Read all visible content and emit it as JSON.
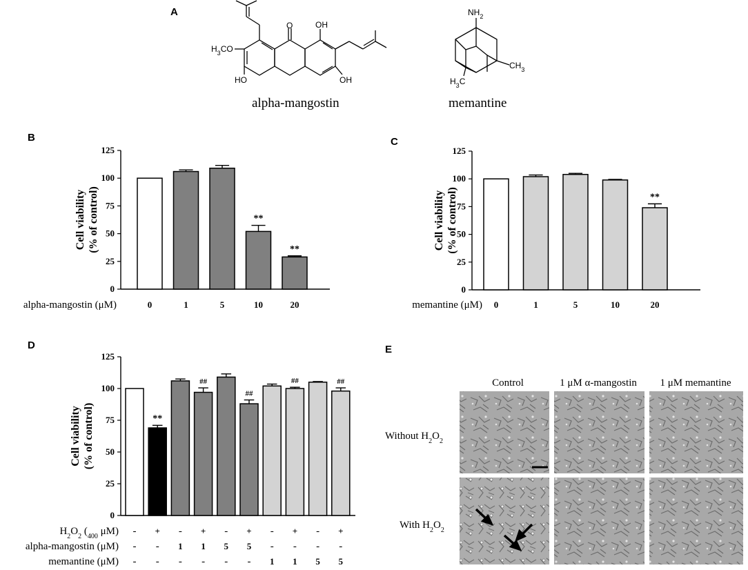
{
  "panel_letters": {
    "a": "A",
    "b": "B",
    "c": "C",
    "d": "D",
    "e": "E"
  },
  "panel_a": {
    "compound1_name": "alpha-mangostin",
    "compound2_name": "memantine",
    "atoms1": {
      "h3co": "H3CO",
      "o": "O",
      "oh_top": "OH",
      "ho": "HO",
      "oh_bottom": "OH"
    },
    "atoms2": {
      "nh2": "NH2",
      "ch3": "CH3",
      "h3c": "H3C"
    }
  },
  "panel_e": {
    "columns": [
      "Control",
      "1 μM α-mangostin",
      "1 μM memantine"
    ],
    "rows": [
      "Without H2O2",
      "With H2O2"
    ]
  },
  "chart_data": [
    {
      "type": "bar",
      "panel": "B",
      "ylabel": [
        "Cell viability",
        "(% of control)"
      ],
      "xlabel": "alpha-mangostin (μM)",
      "categories": [
        "0",
        "1",
        "5",
        "10",
        "20"
      ],
      "values": [
        100,
        106,
        109,
        52,
        29
      ],
      "errors": [
        0,
        1.5,
        2.5,
        5.5,
        1
      ],
      "significance": [
        "",
        "",
        "",
        "**",
        "**"
      ],
      "bar_colors": [
        "#ffffff",
        "#808080",
        "#808080",
        "#808080",
        "#808080"
      ],
      "ylim": [
        0,
        125
      ],
      "yticks": [
        0,
        25,
        50,
        75,
        100,
        125
      ]
    },
    {
      "type": "bar",
      "panel": "C",
      "ylabel": [
        "Cell viability",
        "(% of control)"
      ],
      "xlabel": "memantine (μM)",
      "categories": [
        "0",
        "1",
        "5",
        "10",
        "20"
      ],
      "values": [
        100,
        102,
        104,
        99,
        74
      ],
      "errors": [
        0,
        1.5,
        1,
        0.5,
        3.5
      ],
      "significance": [
        "",
        "",
        "",
        "",
        "**"
      ],
      "bar_colors": [
        "#ffffff",
        "#d3d3d3",
        "#d3d3d3",
        "#d3d3d3",
        "#d3d3d3"
      ],
      "ylim": [
        0,
        125
      ],
      "yticks": [
        0,
        25,
        50,
        75,
        100,
        125
      ]
    },
    {
      "type": "bar",
      "panel": "D",
      "ylabel": [
        "Cell viability",
        "(% of control)"
      ],
      "values": [
        100,
        69,
        106,
        97,
        109,
        88,
        102,
        100,
        105,
        98
      ],
      "errors": [
        0,
        2,
        1.5,
        3.5,
        2.5,
        3,
        1.5,
        1,
        0.5,
        2.5
      ],
      "significance": [
        "",
        "**",
        "",
        "##",
        "",
        "##",
        "",
        "##",
        "",
        "##"
      ],
      "bar_colors": [
        "#ffffff",
        "#000000",
        "#808080",
        "#808080",
        "#808080",
        "#808080",
        "#d3d3d3",
        "#d3d3d3",
        "#d3d3d3",
        "#d3d3d3"
      ],
      "ylim": [
        0,
        125
      ],
      "yticks": [
        0,
        25,
        50,
        75,
        100,
        125
      ],
      "conditions": [
        {
          "label": "H2O2 (400 μM)",
          "values": [
            "-",
            "+",
            "-",
            "+",
            "-",
            "+",
            "-",
            "+",
            "-",
            "+"
          ]
        },
        {
          "label": "alpha-mangostin (μM)",
          "values": [
            "-",
            "-",
            "1",
            "1",
            "5",
            "5",
            "-",
            "-",
            "-",
            "-"
          ]
        },
        {
          "label": "memantine (μM)",
          "values": [
            "-",
            "-",
            "-",
            "-",
            "-",
            "-",
            "1",
            "1",
            "5",
            "5"
          ]
        }
      ]
    }
  ]
}
